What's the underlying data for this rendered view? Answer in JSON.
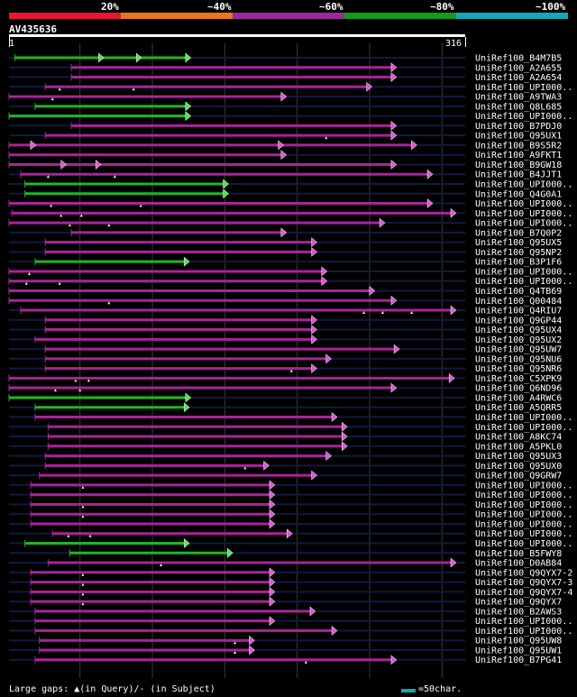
{
  "legend": {
    "colors": [
      "#e8162e",
      "#e8761a",
      "#9a2a98",
      "#159a1a",
      "#12a9b4"
    ],
    "labels": [
      "20%",
      "~40%",
      "~60%",
      "~80%",
      "~100%"
    ]
  },
  "query": {
    "name": "AV435636",
    "start": "1",
    "end": "316",
    "length": 316
  },
  "hits": [
    {
      "label": "UniRef100_B4M7B5",
      "start": 5,
      "end": 126,
      "color": "green",
      "gaps": [],
      "breaks": [
        66,
        92
      ]
    },
    {
      "label": "UniRef100_A2A655",
      "start": 44,
      "end": 268,
      "color": "magenta",
      "gaps": [],
      "breaks": []
    },
    {
      "label": "UniRef100_A2A654",
      "start": 44,
      "end": 268,
      "color": "magenta",
      "gaps": [],
      "breaks": []
    },
    {
      "label": "UniRef100_UPI000..",
      "start": 26,
      "end": 251,
      "color": "magenta",
      "gaps": [
        36,
        87
      ],
      "breaks": []
    },
    {
      "label": "UniRef100_A9TWA3",
      "start": 1,
      "end": 192,
      "color": "magenta",
      "gaps": [
        31
      ],
      "breaks": []
    },
    {
      "label": "UniRef100_Q8L685",
      "start": 19,
      "end": 126,
      "color": "green",
      "gaps": [],
      "breaks": []
    },
    {
      "label": "UniRef100_UPI000..",
      "start": 1,
      "end": 126,
      "color": "green",
      "gaps": [],
      "breaks": []
    },
    {
      "label": "UniRef100_B7PDJ0",
      "start": 44,
      "end": 268,
      "color": "magenta",
      "gaps": [],
      "breaks": []
    },
    {
      "label": "UniRef100_Q95UX1",
      "start": 26,
      "end": 268,
      "color": "magenta",
      "gaps": [
        220
      ],
      "breaks": []
    },
    {
      "label": "UniRef100_B9S5R2",
      "start": 1,
      "end": 282,
      "color": "magenta",
      "gaps": [],
      "breaks": [
        19,
        190
      ]
    },
    {
      "label": "UniRef100_A9FKT1",
      "start": 1,
      "end": 192,
      "color": "magenta",
      "gaps": [],
      "breaks": []
    },
    {
      "label": "UniRef100_B9GW18",
      "start": 1,
      "end": 268,
      "color": "magenta",
      "gaps": [],
      "breaks": [
        40,
        64
      ]
    },
    {
      "label": "UniRef100_B4JJT1",
      "start": 9,
      "end": 293,
      "color": "magenta",
      "gaps": [
        28,
        74
      ],
      "breaks": []
    },
    {
      "label": "UniRef100_UPI000..",
      "start": 12,
      "end": 152,
      "color": "green",
      "gaps": [],
      "breaks": []
    },
    {
      "label": "UniRef100_Q4G0A1",
      "start": 12,
      "end": 152,
      "color": "green",
      "gaps": [],
      "breaks": []
    },
    {
      "label": "UniRef100_UPI000..",
      "start": 1,
      "end": 293,
      "color": "magenta",
      "gaps": [
        30,
        92
      ],
      "breaks": []
    },
    {
      "label": "UniRef100_UPI000..",
      "start": 3,
      "end": 324,
      "color": "magenta",
      "gaps": [
        37,
        51
      ],
      "breaks": []
    },
    {
      "label": "UniRef100_UPI000..",
      "start": 1,
      "end": 260,
      "color": "magenta",
      "gaps": [
        43,
        70
      ],
      "breaks": []
    },
    {
      "label": "UniRef100_B7Q0P2",
      "start": 44,
      "end": 192,
      "color": "magenta",
      "gaps": [],
      "breaks": []
    },
    {
      "label": "UniRef100_Q95UX5",
      "start": 26,
      "end": 213,
      "color": "magenta",
      "gaps": [],
      "breaks": []
    },
    {
      "label": "UniRef100_Q95NP2",
      "start": 26,
      "end": 213,
      "color": "magenta",
      "gaps": [],
      "breaks": []
    },
    {
      "label": "UniRef100_B3P1F6",
      "start": 19,
      "end": 125,
      "color": "green",
      "gaps": [],
      "breaks": []
    },
    {
      "label": "UniRef100_UPI000..",
      "start": 1,
      "end": 220,
      "color": "magenta",
      "gaps": [
        15
      ],
      "breaks": []
    },
    {
      "label": "UniRef100_UPI000..",
      "start": 1,
      "end": 220,
      "color": "magenta",
      "gaps": [
        13,
        36
      ],
      "breaks": []
    },
    {
      "label": "UniRef100_Q4TB69",
      "start": 1,
      "end": 253,
      "color": "magenta",
      "gaps": [],
      "breaks": []
    },
    {
      "label": "UniRef100_Q00484",
      "start": 1,
      "end": 268,
      "color": "magenta",
      "gaps": [
        70
      ],
      "breaks": []
    },
    {
      "label": "UniRef100_Q4RIU7",
      "start": 9,
      "end": 320,
      "color": "magenta",
      "gaps": [
        246,
        259,
        279
      ],
      "breaks": []
    },
    {
      "label": "UniRef100_Q9GP44",
      "start": 26,
      "end": 213,
      "color": "magenta",
      "gaps": [],
      "breaks": []
    },
    {
      "label": "UniRef100_Q95UX4",
      "start": 26,
      "end": 213,
      "color": "magenta",
      "gaps": [],
      "breaks": []
    },
    {
      "label": "UniRef100_Q95UX2",
      "start": 19,
      "end": 213,
      "color": "magenta",
      "gaps": [],
      "breaks": []
    },
    {
      "label": "UniRef100_Q95UW7",
      "start": 26,
      "end": 270,
      "color": "magenta",
      "gaps": [],
      "breaks": []
    },
    {
      "label": "UniRef100_Q95NU6",
      "start": 26,
      "end": 223,
      "color": "magenta",
      "gaps": [],
      "breaks": []
    },
    {
      "label": "UniRef100_Q95NR6",
      "start": 26,
      "end": 213,
      "color": "magenta",
      "gaps": [
        196
      ],
      "breaks": []
    },
    {
      "label": "UniRef100_C5XPK9",
      "start": 1,
      "end": 308,
      "color": "magenta",
      "gaps": [
        47,
        56
      ],
      "breaks": []
    },
    {
      "label": "UniRef100_Q6ND96",
      "start": 1,
      "end": 268,
      "color": "magenta",
      "gaps": [
        33,
        50
      ],
      "breaks": []
    },
    {
      "label": "UniRef100_A4RWC6",
      "start": 1,
      "end": 126,
      "color": "green",
      "gaps": [],
      "breaks": []
    },
    {
      "label": "UniRef100_A5QRR5",
      "start": 19,
      "end": 125,
      "color": "green",
      "gaps": [],
      "breaks": []
    },
    {
      "label": "UniRef100_UPI000..",
      "start": 19,
      "end": 227,
      "color": "magenta",
      "gaps": [],
      "breaks": []
    },
    {
      "label": "UniRef100_UPI000..",
      "start": 28,
      "end": 234,
      "color": "magenta",
      "gaps": [],
      "breaks": []
    },
    {
      "label": "UniRef100_A8KC74",
      "start": 28,
      "end": 234,
      "color": "magenta",
      "gaps": [],
      "breaks": []
    },
    {
      "label": "UniRef100_A5PKL0",
      "start": 28,
      "end": 234,
      "color": "magenta",
      "gaps": [],
      "breaks": []
    },
    {
      "label": "UniRef100_Q95UX3",
      "start": 26,
      "end": 223,
      "color": "magenta",
      "gaps": [],
      "breaks": []
    },
    {
      "label": "UniRef100_Q95UX0",
      "start": 26,
      "end": 180,
      "color": "magenta",
      "gaps": [
        164
      ],
      "breaks": []
    },
    {
      "label": "UniRef100_Q9GRW7",
      "start": 22,
      "end": 213,
      "color": "magenta",
      "gaps": [],
      "breaks": []
    },
    {
      "label": "UniRef100_UPI000..",
      "start": 16,
      "end": 184,
      "color": "magenta",
      "gaps": [
        52
      ],
      "breaks": []
    },
    {
      "label": "UniRef100_UPI000..",
      "start": 16,
      "end": 184,
      "color": "magenta",
      "gaps": [],
      "breaks": []
    },
    {
      "label": "UniRef100_UPI000..",
      "start": 16,
      "end": 184,
      "color": "magenta",
      "gaps": [
        52
      ],
      "breaks": []
    },
    {
      "label": "UniRef100_UPI000..",
      "start": 16,
      "end": 184,
      "color": "magenta",
      "gaps": [
        52
      ],
      "breaks": []
    },
    {
      "label": "UniRef100_UPI000..",
      "start": 16,
      "end": 184,
      "color": "magenta",
      "gaps": [],
      "breaks": []
    },
    {
      "label": "UniRef100_UPI000..",
      "start": 31,
      "end": 196,
      "color": "magenta",
      "gaps": [
        42,
        57
      ],
      "breaks": []
    },
    {
      "label": "UniRef100_UPI000..",
      "start": 12,
      "end": 125,
      "color": "green",
      "gaps": [],
      "breaks": []
    },
    {
      "label": "UniRef100_B5FWY8",
      "start": 43,
      "end": 155,
      "color": "green",
      "gaps": [],
      "breaks": []
    },
    {
      "label": "UniRef100_D0AB84",
      "start": 28,
      "end": 313,
      "color": "magenta",
      "gaps": [
        106
      ],
      "breaks": []
    },
    {
      "label": "UniRef100_Q9QYX7-2",
      "start": 16,
      "end": 184,
      "color": "magenta",
      "gaps": [
        52
      ],
      "breaks": []
    },
    {
      "label": "UniRef100_Q9QYX7-3",
      "start": 16,
      "end": 184,
      "color": "magenta",
      "gaps": [
        52
      ],
      "breaks": []
    },
    {
      "label": "UniRef100_Q9QYX7-4",
      "start": 16,
      "end": 184,
      "color": "magenta",
      "gaps": [
        52
      ],
      "breaks": []
    },
    {
      "label": "UniRef100_Q9QYX7",
      "start": 16,
      "end": 184,
      "color": "magenta",
      "gaps": [
        52
      ],
      "breaks": []
    },
    {
      "label": "UniRef100_B2AWS3",
      "start": 19,
      "end": 212,
      "color": "magenta",
      "gaps": [],
      "breaks": []
    },
    {
      "label": "UniRef100_UPI000..",
      "start": 19,
      "end": 184,
      "color": "magenta",
      "gaps": [],
      "breaks": []
    },
    {
      "label": "UniRef100_UPI000..",
      "start": 19,
      "end": 227,
      "color": "magenta",
      "gaps": [],
      "breaks": []
    },
    {
      "label": "UniRef100_Q95UW8",
      "start": 22,
      "end": 170,
      "color": "magenta",
      "gaps": [
        157
      ],
      "breaks": []
    },
    {
      "label": "UniRef100_Q95UW1",
      "start": 22,
      "end": 170,
      "color": "magenta",
      "gaps": [
        157
      ],
      "breaks": []
    },
    {
      "label": "UniRef100_B7PG41",
      "start": 19,
      "end": 268,
      "color": "magenta",
      "gaps": [
        206
      ],
      "breaks": []
    }
  ],
  "footer": {
    "text": "Large gaps: ▲(in Query)/- (in Subject)",
    "scale_key": "=50char.",
    "scale_color": "#12a9b4"
  }
}
